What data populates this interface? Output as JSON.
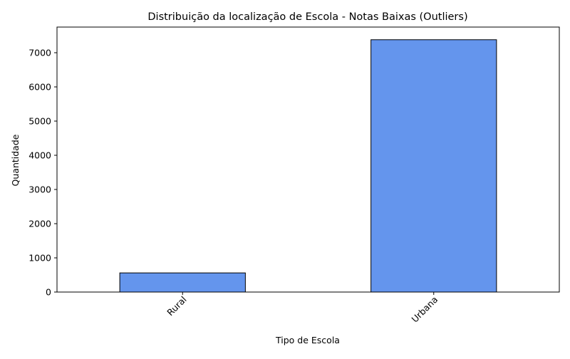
{
  "chart_data": {
    "type": "bar",
    "title": "Distribuição da localização de Escola - Notas Baixas (Outliers)",
    "xlabel": "Tipo de Escola",
    "ylabel": "Quantidade",
    "categories": [
      "Rural",
      "Urbana"
    ],
    "values": [
      560,
      7380
    ],
    "ylim": [
      0,
      7750
    ],
    "yticks": [
      0,
      1000,
      2000,
      3000,
      4000,
      5000,
      6000,
      7000
    ],
    "ytick_labels": [
      "0",
      "1000",
      "2000",
      "3000",
      "4000",
      "5000",
      "6000",
      "7000"
    ],
    "bar_color": "#6495ED",
    "edge_color": "#000000",
    "grid": false,
    "legend": "none",
    "xtick_rotation": "45"
  }
}
